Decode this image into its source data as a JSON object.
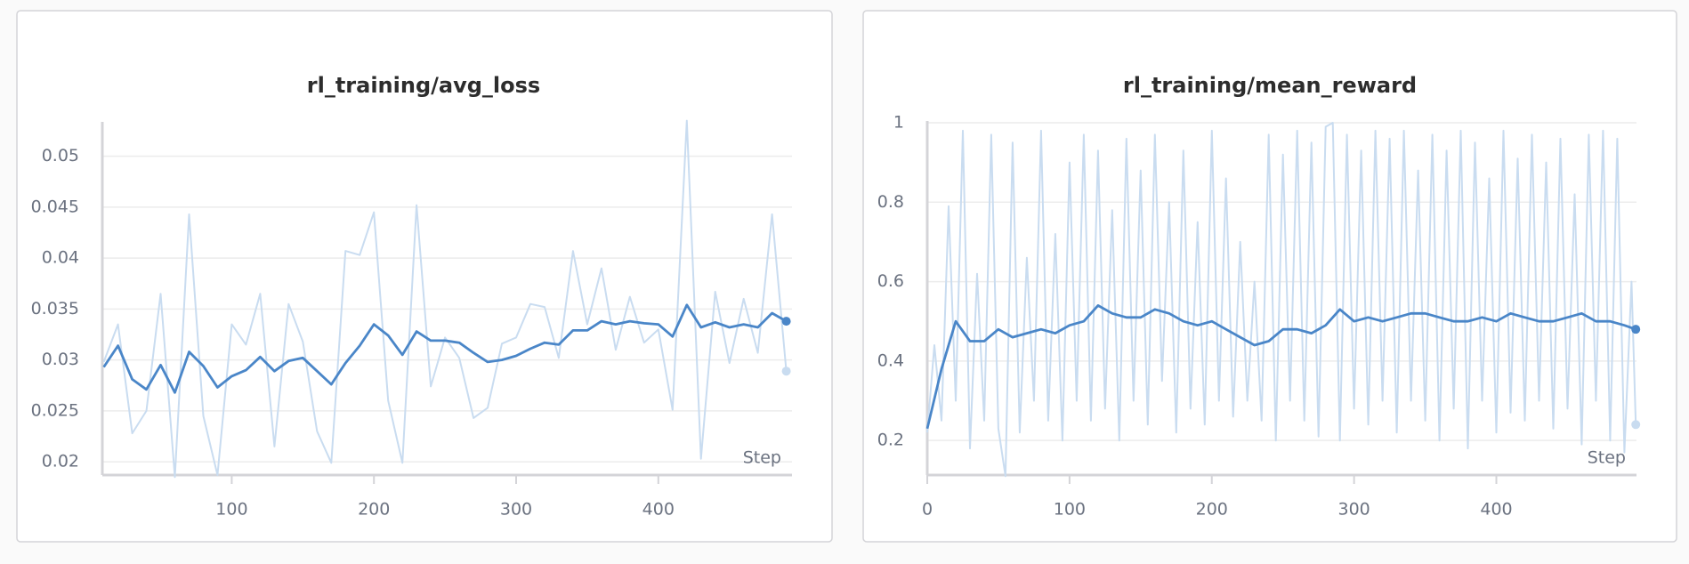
{
  "chart_data": [
    {
      "type": "line",
      "title": "rl_training/avg_loss",
      "x_label": "Step",
      "xlim": [
        9,
        494
      ],
      "ylim": [
        0.0187,
        0.0532
      ],
      "xticks": [
        100,
        200,
        300,
        400
      ],
      "yticks": [
        0.02,
        0.025,
        0.03,
        0.035,
        0.04,
        0.045,
        0.05
      ],
      "grid": true,
      "series": [
        {
          "color": "#c9dcf0",
          "x": [
            10,
            20,
            30,
            40,
            50,
            60,
            70,
            80,
            90,
            100,
            110,
            120,
            130,
            140,
            150,
            160,
            170,
            180,
            190,
            200,
            210,
            220,
            230,
            240,
            250,
            260,
            270,
            280,
            290,
            300,
            310,
            320,
            330,
            340,
            350,
            360,
            370,
            380,
            390,
            400,
            410,
            420,
            430,
            440,
            450,
            460,
            470,
            480,
            490
          ],
          "values": [
            0.0298,
            0.0335,
            0.0228,
            0.025,
            0.0365,
            0.0185,
            0.0443,
            0.0245,
            0.0187,
            0.0335,
            0.0315,
            0.0365,
            0.0215,
            0.0355,
            0.0318,
            0.023,
            0.0199,
            0.0407,
            0.0403,
            0.0445,
            0.026,
            0.0199,
            0.0452,
            0.0274,
            0.0322,
            0.0302,
            0.0243,
            0.0253,
            0.0316,
            0.0322,
            0.0355,
            0.0352,
            0.0302,
            0.0407,
            0.0335,
            0.039,
            0.031,
            0.0362,
            0.0317,
            0.033,
            0.0251,
            0.0535,
            0.0203,
            0.0367,
            0.0297,
            0.036,
            0.0307,
            0.0443,
            0.0289
          ]
        },
        {
          "color": "#4a86c8",
          "x": [
            10,
            20,
            30,
            40,
            50,
            60,
            70,
            80,
            90,
            100,
            110,
            120,
            130,
            140,
            150,
            160,
            170,
            180,
            190,
            200,
            210,
            220,
            230,
            240,
            250,
            260,
            270,
            280,
            290,
            300,
            310,
            320,
            330,
            340,
            350,
            360,
            370,
            380,
            390,
            400,
            410,
            420,
            430,
            440,
            450,
            460,
            470,
            480,
            490
          ],
          "values": [
            0.0293,
            0.0314,
            0.0281,
            0.0271,
            0.0295,
            0.0268,
            0.0308,
            0.0294,
            0.0273,
            0.0284,
            0.029,
            0.0303,
            0.0289,
            0.0299,
            0.0302,
            0.0289,
            0.0276,
            0.0297,
            0.0314,
            0.0335,
            0.0324,
            0.0305,
            0.0328,
            0.0319,
            0.0319,
            0.0317,
            0.0307,
            0.0298,
            0.03,
            0.0304,
            0.0311,
            0.0317,
            0.0315,
            0.0329,
            0.0329,
            0.0338,
            0.0335,
            0.0338,
            0.0336,
            0.0335,
            0.0323,
            0.0354,
            0.0332,
            0.0337,
            0.0332,
            0.0335,
            0.0332,
            0.0346,
            0.0338
          ]
        }
      ]
    },
    {
      "type": "line",
      "title": "rl_training/mean_reward",
      "x_label": "Step",
      "xlim": [
        0,
        498.5
      ],
      "ylim": [
        0.113,
        1.0
      ],
      "xticks": [
        0,
        100,
        200,
        300,
        400
      ],
      "yticks": [
        0.2,
        0.4,
        0.6,
        0.8,
        1
      ],
      "grid": true,
      "series": [
        {
          "color": "#c9dcf0",
          "x": [
            0,
            5,
            10,
            15,
            20,
            25,
            30,
            35,
            40,
            45,
            50,
            55,
            60,
            65,
            70,
            75,
            80,
            85,
            90,
            95,
            100,
            105,
            110,
            115,
            120,
            125,
            130,
            135,
            140,
            145,
            150,
            155,
            160,
            165,
            170,
            175,
            180,
            185,
            190,
            195,
            200,
            205,
            210,
            215,
            220,
            225,
            230,
            235,
            240,
            245,
            250,
            255,
            260,
            265,
            270,
            275,
            280,
            285,
            290,
            295,
            300,
            305,
            310,
            315,
            320,
            325,
            330,
            335,
            340,
            345,
            350,
            355,
            360,
            365,
            370,
            375,
            380,
            385,
            390,
            395,
            400,
            405,
            410,
            415,
            420,
            425,
            430,
            435,
            440,
            445,
            450,
            455,
            460,
            465,
            470,
            475,
            480,
            485,
            490,
            495,
            498
          ],
          "values": [
            0.22,
            0.44,
            0.25,
            0.79,
            0.3,
            0.98,
            0.18,
            0.62,
            0.25,
            0.97,
            0.23,
            0.11,
            0.95,
            0.22,
            0.66,
            0.3,
            0.98,
            0.25,
            0.72,
            0.2,
            0.9,
            0.3,
            0.97,
            0.25,
            0.93,
            0.28,
            0.78,
            0.2,
            0.96,
            0.3,
            0.88,
            0.24,
            0.97,
            0.35,
            0.8,
            0.22,
            0.93,
            0.28,
            0.75,
            0.24,
            0.98,
            0.3,
            0.86,
            0.26,
            0.7,
            0.3,
            0.6,
            0.25,
            0.97,
            0.2,
            0.92,
            0.3,
            0.98,
            0.25,
            0.95,
            0.21,
            0.99,
            1.0,
            0.2,
            0.97,
            0.28,
            0.93,
            0.24,
            0.98,
            0.3,
            0.96,
            0.22,
            0.98,
            0.3,
            0.88,
            0.25,
            0.97,
            0.2,
            0.93,
            0.28,
            0.98,
            0.18,
            0.95,
            0.3,
            0.86,
            0.22,
            0.98,
            0.27,
            0.91,
            0.25,
            0.97,
            0.3,
            0.9,
            0.23,
            0.96,
            0.28,
            0.82,
            0.19,
            0.97,
            0.3,
            0.98,
            0.2,
            0.96,
            0.17,
            0.6,
            0.24
          ]
        },
        {
          "color": "#4a86c8",
          "x": [
            0,
            10,
            20,
            30,
            40,
            50,
            60,
            70,
            80,
            90,
            100,
            110,
            120,
            130,
            140,
            150,
            160,
            170,
            180,
            190,
            200,
            210,
            220,
            230,
            240,
            250,
            260,
            270,
            280,
            290,
            300,
            310,
            320,
            330,
            340,
            350,
            360,
            370,
            380,
            390,
            400,
            410,
            420,
            430,
            440,
            450,
            460,
            470,
            480,
            490,
            498
          ],
          "values": [
            0.23,
            0.38,
            0.5,
            0.45,
            0.45,
            0.48,
            0.46,
            0.47,
            0.48,
            0.47,
            0.49,
            0.5,
            0.54,
            0.52,
            0.51,
            0.51,
            0.53,
            0.52,
            0.5,
            0.49,
            0.5,
            0.48,
            0.46,
            0.44,
            0.45,
            0.48,
            0.48,
            0.47,
            0.49,
            0.53,
            0.5,
            0.51,
            0.5,
            0.51,
            0.52,
            0.52,
            0.51,
            0.5,
            0.5,
            0.51,
            0.5,
            0.52,
            0.51,
            0.5,
            0.5,
            0.51,
            0.52,
            0.5,
            0.5,
            0.49,
            0.48
          ]
        }
      ]
    }
  ]
}
